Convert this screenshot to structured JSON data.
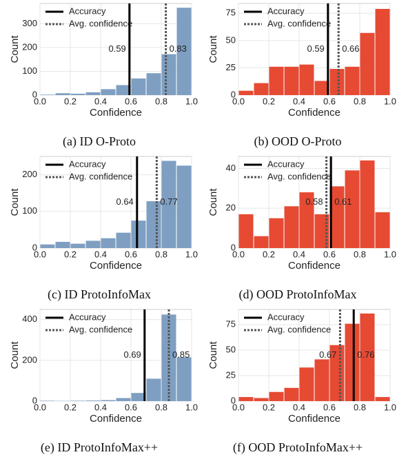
{
  "chart_data": [
    {
      "type": "histogram",
      "caption": "(a) ID O-Proto",
      "xlabel": "Confidence",
      "ylabel": "Count",
      "bins": [
        0,
        0.1,
        0.2,
        0.3,
        0.4,
        0.5,
        0.6,
        0.7,
        0.8,
        0.9,
        1
      ],
      "values": [
        2,
        8,
        6,
        12,
        25,
        42,
        70,
        92,
        172,
        367
      ],
      "color": "#7f9fc2",
      "xlim": [
        0,
        1
      ],
      "ylim": [
        0,
        385
      ],
      "xticks": [
        {
          "value": 0,
          "label": "0.0"
        },
        0.2,
        0.4,
        0.6,
        0.8,
        {
          "value": 1,
          "label": "1.0"
        }
      ],
      "yticks": [
        0,
        100,
        200,
        300
      ],
      "grid": true,
      "lines": [
        {
          "name": "Accuracy",
          "value": 0.59,
          "style": "solid"
        },
        {
          "name": "Avg. confidence",
          "value": 0.83,
          "style": "dotted"
        }
      ]
    },
    {
      "type": "histogram",
      "caption": "(b) OOD O-Proto",
      "xlabel": "Confidence",
      "ylabel": "Count",
      "bins": [
        0,
        0.1,
        0.2,
        0.3,
        0.4,
        0.5,
        0.6,
        0.7,
        0.8,
        0.9,
        1
      ],
      "values": [
        4,
        11,
        26,
        26,
        28,
        13,
        24,
        26,
        57,
        79
      ],
      "color": "#e64a33",
      "xlim": [
        0,
        1
      ],
      "ylim": [
        0,
        84
      ],
      "xticks": [
        {
          "value": 0,
          "label": "0.0"
        },
        0.2,
        0.4,
        0.6,
        0.8,
        {
          "value": 1,
          "label": "1.0"
        }
      ],
      "yticks": [
        0,
        25,
        50,
        75
      ],
      "grid": true,
      "lines": [
        {
          "name": "Accuracy",
          "value": 0.59,
          "style": "solid"
        },
        {
          "name": "Avg. confidence",
          "value": 0.66,
          "style": "dotted"
        }
      ]
    },
    {
      "type": "histogram",
      "caption": "(c) ID ProtoInfoMax",
      "xlabel": "Confidence",
      "ylabel": "Count",
      "bins": [
        0,
        0.1,
        0.2,
        0.3,
        0.4,
        0.5,
        0.6,
        0.7,
        0.8,
        0.9,
        1
      ],
      "values": [
        10,
        17,
        12,
        20,
        27,
        42,
        75,
        128,
        238,
        225
      ],
      "color": "#7f9fc2",
      "xlim": [
        0,
        1
      ],
      "ylim": [
        0,
        250
      ],
      "xticks": [
        {
          "value": 0,
          "label": "0.0"
        },
        0.2,
        0.4,
        0.6,
        0.8,
        {
          "value": 1,
          "label": "1.0"
        }
      ],
      "yticks": [
        0,
        100,
        200
      ],
      "grid": true,
      "lines": [
        {
          "name": "Accuracy",
          "value": 0.64,
          "style": "solid"
        },
        {
          "name": "Avg. confidence",
          "value": 0.77,
          "style": "dotted"
        }
      ]
    },
    {
      "type": "histogram",
      "caption": "(d) OOD ProtoInfoMax",
      "xlabel": "Confidence",
      "ylabel": "Count",
      "bins": [
        0,
        0.1,
        0.2,
        0.3,
        0.4,
        0.5,
        0.6,
        0.7,
        0.8,
        0.9,
        1
      ],
      "values": [
        17,
        6,
        15,
        21,
        28,
        17,
        31,
        39,
        44,
        18
      ],
      "color": "#e64a33",
      "xlim": [
        0,
        1
      ],
      "ylim": [
        0,
        46
      ],
      "xticks": [
        {
          "value": 0,
          "label": "0.0"
        },
        0.2,
        0.4,
        0.6,
        0.8,
        {
          "value": 1,
          "label": "1.0"
        }
      ],
      "yticks": [
        0,
        20,
        40
      ],
      "grid": true,
      "lines": [
        {
          "name": "Accuracy",
          "value": 0.61,
          "style": "solid"
        },
        {
          "name": "Avg. confidence",
          "value": 0.58,
          "style": "dotted"
        }
      ]
    },
    {
      "type": "histogram",
      "caption": "(e) ID ProtoInfoMax++",
      "xlabel": "Confidence",
      "ylabel": "Count",
      "bins": [
        0,
        0.1,
        0.2,
        0.3,
        0.4,
        0.5,
        0.6,
        0.7,
        0.8,
        0.9,
        1
      ],
      "values": [
        2,
        1,
        2,
        3,
        5,
        15,
        40,
        110,
        425,
        215
      ],
      "color": "#7f9fc2",
      "xlim": [
        0,
        1
      ],
      "ylim": [
        0,
        450
      ],
      "xticks": [
        {
          "value": 0,
          "label": "0.0"
        },
        0.2,
        0.4,
        0.6,
        0.8,
        {
          "value": 1,
          "label": "1.0"
        }
      ],
      "yticks": [
        0,
        200,
        400
      ],
      "grid": true,
      "lines": [
        {
          "name": "Accuracy",
          "value": 0.69,
          "style": "solid"
        },
        {
          "name": "Avg. confidence",
          "value": 0.85,
          "style": "dotted"
        }
      ]
    },
    {
      "type": "histogram",
      "caption": "(f) OOD ProtoInfoMax++",
      "xlabel": "Confidence",
      "ylabel": "Count",
      "bins": [
        0,
        0.1,
        0.2,
        0.3,
        0.4,
        0.5,
        0.6,
        0.7,
        0.8,
        0.9,
        1
      ],
      "values": [
        4,
        3,
        9,
        13,
        33,
        41,
        55,
        76,
        86,
        4
      ],
      "color": "#e64a33",
      "xlim": [
        0,
        1
      ],
      "ylim": [
        0,
        90
      ],
      "xticks": [
        {
          "value": 0,
          "label": "0.0"
        },
        0.2,
        0.4,
        0.6,
        0.8,
        {
          "value": 1,
          "label": "1.0"
        }
      ],
      "yticks": [
        0,
        25,
        50,
        75
      ],
      "grid": true,
      "lines": [
        {
          "name": "Accuracy",
          "value": 0.76,
          "style": "solid"
        },
        {
          "name": "Avg. confidence",
          "value": 0.67,
          "style": "dotted"
        }
      ]
    }
  ]
}
